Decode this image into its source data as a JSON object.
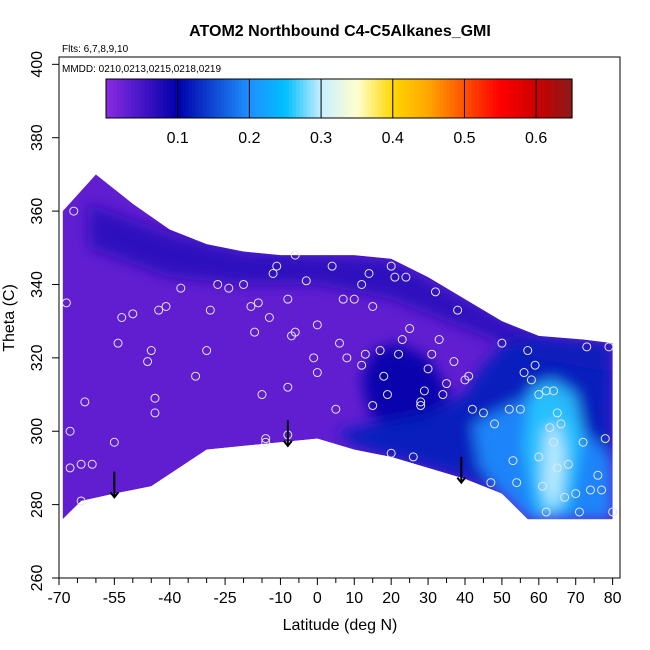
{
  "chart_data": {
    "type": "heatmap",
    "title": "ATOM2 Northbound C4-C5Alkanes_GMI",
    "flights_label": "Flts: 6,7,8,9,10",
    "dates_label": "MMDD: 0210,0213,0215,0218,0219",
    "xlabel": "Latitude (deg N)",
    "ylabel": "Theta (C)",
    "xlim": [
      -70,
      82
    ],
    "ylim": [
      260,
      402
    ],
    "x_ticks": [
      -70,
      -55,
      -40,
      -25,
      -10,
      0,
      10,
      20,
      30,
      40,
      50,
      60,
      70,
      80
    ],
    "x_minor_ticks": [
      -65,
      -60,
      -50,
      -45,
      -35,
      -30,
      -20,
      -15,
      -5,
      5,
      15,
      25,
      35,
      45,
      55,
      65,
      75
    ],
    "y_ticks": [
      260,
      280,
      300,
      320,
      340,
      360,
      380,
      400
    ],
    "colorbar": {
      "range": [
        0,
        0.65
      ],
      "ticks": [
        0.1,
        0.2,
        0.3,
        0.4,
        0.5,
        0.6
      ],
      "tick_labels": [
        "0.1",
        "0.2",
        "0.3",
        "0.4",
        "0.5",
        "0.6"
      ],
      "stops": [
        {
          "v": 0.0,
          "c": "#8a2be2"
        },
        {
          "v": 0.1,
          "c": "#0000aa"
        },
        {
          "v": 0.2,
          "c": "#1e90ff"
        },
        {
          "v": 0.25,
          "c": "#00bfff"
        },
        {
          "v": 0.3,
          "c": "#c8eeff"
        },
        {
          "v": 0.35,
          "c": "#ffffd0"
        },
        {
          "v": 0.4,
          "c": "#ffd700"
        },
        {
          "v": 0.45,
          "c": "#ffa500"
        },
        {
          "v": 0.5,
          "c": "#ff5000"
        },
        {
          "v": 0.55,
          "c": "#ff0000"
        },
        {
          "v": 0.6,
          "c": "#cc0000"
        },
        {
          "v": 0.65,
          "c": "#8b1a1a"
        }
      ]
    },
    "colors": {
      "background_field": "#8a2be2",
      "dark_blue": "#0000cd",
      "light_blue": "#00bfff",
      "arrow": "#000000",
      "marker": "#e6e6e6"
    },
    "upper_boundary": [
      {
        "lat": -69,
        "theta": 360
      },
      {
        "lat": -60,
        "theta": 370
      },
      {
        "lat": -50,
        "theta": 362
      },
      {
        "lat": -40,
        "theta": 355
      },
      {
        "lat": -30,
        "theta": 351
      },
      {
        "lat": -20,
        "theta": 349
      },
      {
        "lat": -10,
        "theta": 348
      },
      {
        "lat": 0,
        "theta": 348
      },
      {
        "lat": 10,
        "theta": 348
      },
      {
        "lat": 20,
        "theta": 347
      },
      {
        "lat": 30,
        "theta": 342
      },
      {
        "lat": 40,
        "theta": 336
      },
      {
        "lat": 50,
        "theta": 330
      },
      {
        "lat": 60,
        "theta": 326
      },
      {
        "lat": 72,
        "theta": 325
      },
      {
        "lat": 80,
        "theta": 324
      }
    ],
    "lower_boundary": [
      {
        "lat": -69,
        "theta": 276
      },
      {
        "lat": -64,
        "theta": 281
      },
      {
        "lat": -55,
        "theta": 283
      },
      {
        "lat": -45,
        "theta": 285
      },
      {
        "lat": -30,
        "theta": 295
      },
      {
        "lat": -20,
        "theta": 296
      },
      {
        "lat": -10,
        "theta": 297
      },
      {
        "lat": 0,
        "theta": 298
      },
      {
        "lat": 10,
        "theta": 295
      },
      {
        "lat": 20,
        "theta": 293
      },
      {
        "lat": 30,
        "theta": 290
      },
      {
        "lat": 40,
        "theta": 287
      },
      {
        "lat": 50,
        "theta": 283
      },
      {
        "lat": 57,
        "theta": 276
      },
      {
        "lat": 80,
        "theta": 276
      }
    ],
    "regions": [
      {
        "name": "upper-dark-band",
        "value": 0.07,
        "points": [
          [
            -62,
            362
          ],
          [
            -40,
            354
          ],
          [
            -20,
            349
          ],
          [
            0,
            348
          ],
          [
            20,
            347
          ],
          [
            40,
            336
          ],
          [
            60,
            326
          ],
          [
            80,
            324
          ],
          [
            80,
            316
          ],
          [
            60,
            320
          ],
          [
            40,
            328
          ],
          [
            20,
            336
          ],
          [
            0,
            340
          ],
          [
            -20,
            340
          ],
          [
            -40,
            342
          ],
          [
            -62,
            350
          ]
        ]
      },
      {
        "name": "mid-dark-blob",
        "value": 0.1,
        "points": [
          [
            15,
            322
          ],
          [
            22,
            324
          ],
          [
            30,
            320
          ],
          [
            36,
            310
          ],
          [
            30,
            302
          ],
          [
            20,
            300
          ],
          [
            14,
            305
          ],
          [
            12,
            314
          ]
        ]
      },
      {
        "name": "lower-dark-blue",
        "value": 0.12,
        "points": [
          [
            5,
            300
          ],
          [
            15,
            302
          ],
          [
            30,
            305
          ],
          [
            40,
            310
          ],
          [
            45,
            318
          ],
          [
            52,
            325
          ],
          [
            60,
            326
          ],
          [
            70,
            325
          ],
          [
            80,
            324
          ],
          [
            80,
            276
          ],
          [
            57,
            276
          ],
          [
            50,
            283
          ],
          [
            40,
            287
          ],
          [
            30,
            290
          ],
          [
            20,
            293
          ],
          [
            10,
            296
          ]
        ]
      },
      {
        "name": "right-mid-blue",
        "value": 0.2,
        "points": [
          [
            42,
            302
          ],
          [
            50,
            306
          ],
          [
            58,
            310
          ],
          [
            65,
            308
          ],
          [
            72,
            300
          ],
          [
            78,
            295
          ],
          [
            80,
            290
          ],
          [
            80,
            276
          ],
          [
            57,
            276
          ],
          [
            50,
            283
          ],
          [
            44,
            290
          ]
        ]
      },
      {
        "name": "right-light-blue",
        "value": 0.26,
        "points": [
          [
            58,
            312
          ],
          [
            64,
            314
          ],
          [
            70,
            310
          ],
          [
            72,
            300
          ],
          [
            70,
            288
          ],
          [
            68,
            278
          ],
          [
            60,
            276
          ],
          [
            58,
            284
          ],
          [
            56,
            296
          ]
        ]
      },
      {
        "name": "right-pale-core",
        "value": 0.3,
        "points": [
          [
            62,
            300
          ],
          [
            65,
            302
          ],
          [
            67,
            294
          ],
          [
            66,
            282
          ],
          [
            63,
            278
          ],
          [
            61,
            286
          ]
        ]
      }
    ],
    "observations": [
      {
        "lat": -68,
        "theta": 335
      },
      {
        "lat": -66,
        "theta": 360
      },
      {
        "lat": -67,
        "theta": 300
      },
      {
        "lat": -67,
        "theta": 290
      },
      {
        "lat": -64,
        "theta": 291
      },
      {
        "lat": -61,
        "theta": 291
      },
      {
        "lat": -63,
        "theta": 308
      },
      {
        "lat": -64,
        "theta": 281
      },
      {
        "lat": -55,
        "theta": 297
      },
      {
        "lat": -54,
        "theta": 324
      },
      {
        "lat": -53,
        "theta": 331
      },
      {
        "lat": -50,
        "theta": 332
      },
      {
        "lat": -46,
        "theta": 319
      },
      {
        "lat": -45,
        "theta": 322
      },
      {
        "lat": -44,
        "theta": 305
      },
      {
        "lat": -44,
        "theta": 309
      },
      {
        "lat": -43,
        "theta": 333
      },
      {
        "lat": -41,
        "theta": 334
      },
      {
        "lat": -37,
        "theta": 339
      },
      {
        "lat": -33,
        "theta": 315
      },
      {
        "lat": -30,
        "theta": 322
      },
      {
        "lat": -29,
        "theta": 333
      },
      {
        "lat": -27,
        "theta": 340
      },
      {
        "lat": -24,
        "theta": 339
      },
      {
        "lat": -20,
        "theta": 340
      },
      {
        "lat": -18,
        "theta": 334
      },
      {
        "lat": -17,
        "theta": 327
      },
      {
        "lat": -16,
        "theta": 335
      },
      {
        "lat": -15,
        "theta": 310
      },
      {
        "lat": -14,
        "theta": 297
      },
      {
        "lat": -14,
        "theta": 298
      },
      {
        "lat": -13,
        "theta": 331
      },
      {
        "lat": -12,
        "theta": 343
      },
      {
        "lat": -11,
        "theta": 345
      },
      {
        "lat": -6,
        "theta": 348
      },
      {
        "lat": -8,
        "theta": 336
      },
      {
        "lat": -7,
        "theta": 326
      },
      {
        "lat": -6,
        "theta": 327
      },
      {
        "lat": -8,
        "theta": 312
      },
      {
        "lat": -8,
        "theta": 299
      },
      {
        "lat": -3,
        "theta": 341
      },
      {
        "lat": -1,
        "theta": 320
      },
      {
        "lat": 0,
        "theta": 316
      },
      {
        "lat": 0,
        "theta": 329
      },
      {
        "lat": 4,
        "theta": 345
      },
      {
        "lat": 5,
        "theta": 306
      },
      {
        "lat": 6,
        "theta": 324
      },
      {
        "lat": 7,
        "theta": 336
      },
      {
        "lat": 8,
        "theta": 320
      },
      {
        "lat": 10,
        "theta": 336
      },
      {
        "lat": 12,
        "theta": 340
      },
      {
        "lat": 12,
        "theta": 318
      },
      {
        "lat": 13,
        "theta": 321
      },
      {
        "lat": 14,
        "theta": 343
      },
      {
        "lat": 15,
        "theta": 334
      },
      {
        "lat": 15,
        "theta": 307
      },
      {
        "lat": 17,
        "theta": 322
      },
      {
        "lat": 18,
        "theta": 315
      },
      {
        "lat": 19,
        "theta": 310
      },
      {
        "lat": 20,
        "theta": 345
      },
      {
        "lat": 21,
        "theta": 342
      },
      {
        "lat": 22,
        "theta": 321
      },
      {
        "lat": 23,
        "theta": 325
      },
      {
        "lat": 24,
        "theta": 342
      },
      {
        "lat": 25,
        "theta": 328
      },
      {
        "lat": 28,
        "theta": 308
      },
      {
        "lat": 29,
        "theta": 311
      },
      {
        "lat": 30,
        "theta": 317
      },
      {
        "lat": 31,
        "theta": 321
      },
      {
        "lat": 32,
        "theta": 338
      },
      {
        "lat": 33,
        "theta": 325
      },
      {
        "lat": 34,
        "theta": 310
      },
      {
        "lat": 35,
        "theta": 313
      },
      {
        "lat": 37,
        "theta": 319
      },
      {
        "lat": 38,
        "theta": 333
      },
      {
        "lat": 40,
        "theta": 314
      },
      {
        "lat": 41,
        "theta": 315
      },
      {
        "lat": 42,
        "theta": 306
      },
      {
        "lat": 45,
        "theta": 305
      },
      {
        "lat": 48,
        "theta": 302
      },
      {
        "lat": 50,
        "theta": 324
      },
      {
        "lat": 52,
        "theta": 306
      },
      {
        "lat": 53,
        "theta": 292
      },
      {
        "lat": 54,
        "theta": 286
      },
      {
        "lat": 55,
        "theta": 306
      },
      {
        "lat": 56,
        "theta": 316
      },
      {
        "lat": 57,
        "theta": 322
      },
      {
        "lat": 58,
        "theta": 314
      },
      {
        "lat": 59,
        "theta": 318
      },
      {
        "lat": 60,
        "theta": 310
      },
      {
        "lat": 60,
        "theta": 293
      },
      {
        "lat": 61,
        "theta": 285
      },
      {
        "lat": 62,
        "theta": 311
      },
      {
        "lat": 62,
        "theta": 278
      },
      {
        "lat": 63,
        "theta": 301
      },
      {
        "lat": 64,
        "theta": 311
      },
      {
        "lat": 64,
        "theta": 297
      },
      {
        "lat": 65,
        "theta": 305
      },
      {
        "lat": 65,
        "theta": 290
      },
      {
        "lat": 66,
        "theta": 302
      },
      {
        "lat": 67,
        "theta": 282
      },
      {
        "lat": 68,
        "theta": 291
      },
      {
        "lat": 70,
        "theta": 283
      },
      {
        "lat": 71,
        "theta": 278
      },
      {
        "lat": 72,
        "theta": 297
      },
      {
        "lat": 73,
        "theta": 323
      },
      {
        "lat": 74,
        "theta": 284
      },
      {
        "lat": 76,
        "theta": 288
      },
      {
        "lat": 77,
        "theta": 284
      },
      {
        "lat": 78,
        "theta": 298
      },
      {
        "lat": 79,
        "theta": 323
      },
      {
        "lat": 80,
        "theta": 278
      },
      {
        "lat": 26,
        "theta": 293
      },
      {
        "lat": 20,
        "theta": 294
      },
      {
        "lat": 47,
        "theta": 286
      },
      {
        "lat": 28,
        "theta": 307
      }
    ],
    "arrows": [
      {
        "lat": -55,
        "theta_top": 289,
        "theta_bottom": 282
      },
      {
        "lat": -8,
        "theta_top": 303,
        "theta_bottom": 296
      },
      {
        "lat": 39,
        "theta_top": 293,
        "theta_bottom": 286
      }
    ]
  }
}
